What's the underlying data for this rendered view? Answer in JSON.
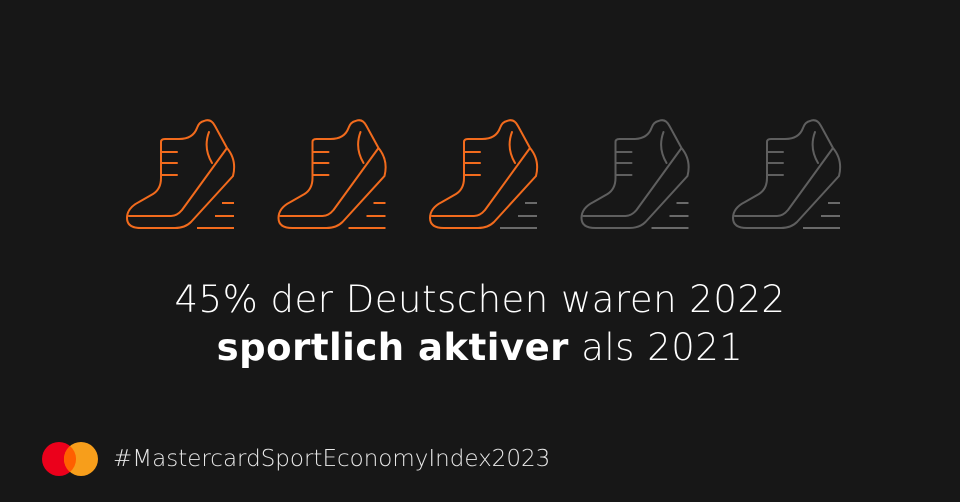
{
  "icons": {
    "shoe": "running-shoe-icon",
    "count_total": 5,
    "count_highlighted": 3,
    "highlight_color": "#f26b1d",
    "muted_color": "#5f5f5f",
    "speed_line_color": "#6a6a6a"
  },
  "headline": {
    "line1": "45% der Deutschen waren 2022",
    "line2_bold": "sportlich aktiver",
    "line2_rest": " als 2021"
  },
  "footer": {
    "logo": "Mastercard",
    "logo_colors": [
      "#eb001b",
      "#f79e1b",
      "#ff5f00"
    ],
    "hashtag": "#MastercardSportEconomyIndex2023"
  },
  "background_color": "#171717"
}
